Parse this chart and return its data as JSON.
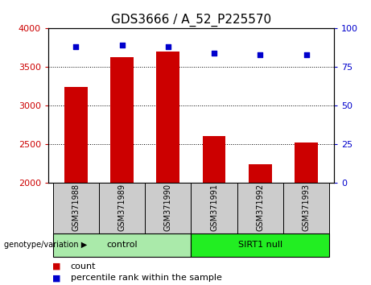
{
  "title": "GDS3666 / A_52_P225570",
  "samples": [
    "GSM371988",
    "GSM371989",
    "GSM371990",
    "GSM371991",
    "GSM371992",
    "GSM371993"
  ],
  "counts": [
    3240,
    3630,
    3700,
    2600,
    2240,
    2520
  ],
  "percentile_ranks": [
    88,
    89,
    88,
    84,
    83,
    83
  ],
  "ylim_left": [
    2000,
    4000
  ],
  "ylim_right": [
    0,
    100
  ],
  "yticks_left": [
    2000,
    2500,
    3000,
    3500,
    4000
  ],
  "yticks_right": [
    0,
    25,
    50,
    75,
    100
  ],
  "bar_color": "#cc0000",
  "dot_color": "#0000cc",
  "bar_bottom": 2000,
  "groups": [
    {
      "label": "control",
      "color": "#aaeaaa",
      "start": 0,
      "end": 3
    },
    {
      "label": "SIRT1 null",
      "color": "#22ee22",
      "start": 3,
      "end": 6
    }
  ],
  "group_label": "genotype/variation",
  "legend_count_label": "count",
  "legend_pct_label": "percentile rank within the sample",
  "tick_color_left": "#cc0000",
  "tick_color_right": "#0000cc",
  "grid_color": "#000000",
  "xlabel_area_color": "#cccccc",
  "title_fontsize": 11,
  "axis_fontsize": 8,
  "sample_fontsize": 7,
  "group_fontsize": 8,
  "legend_fontsize": 8
}
